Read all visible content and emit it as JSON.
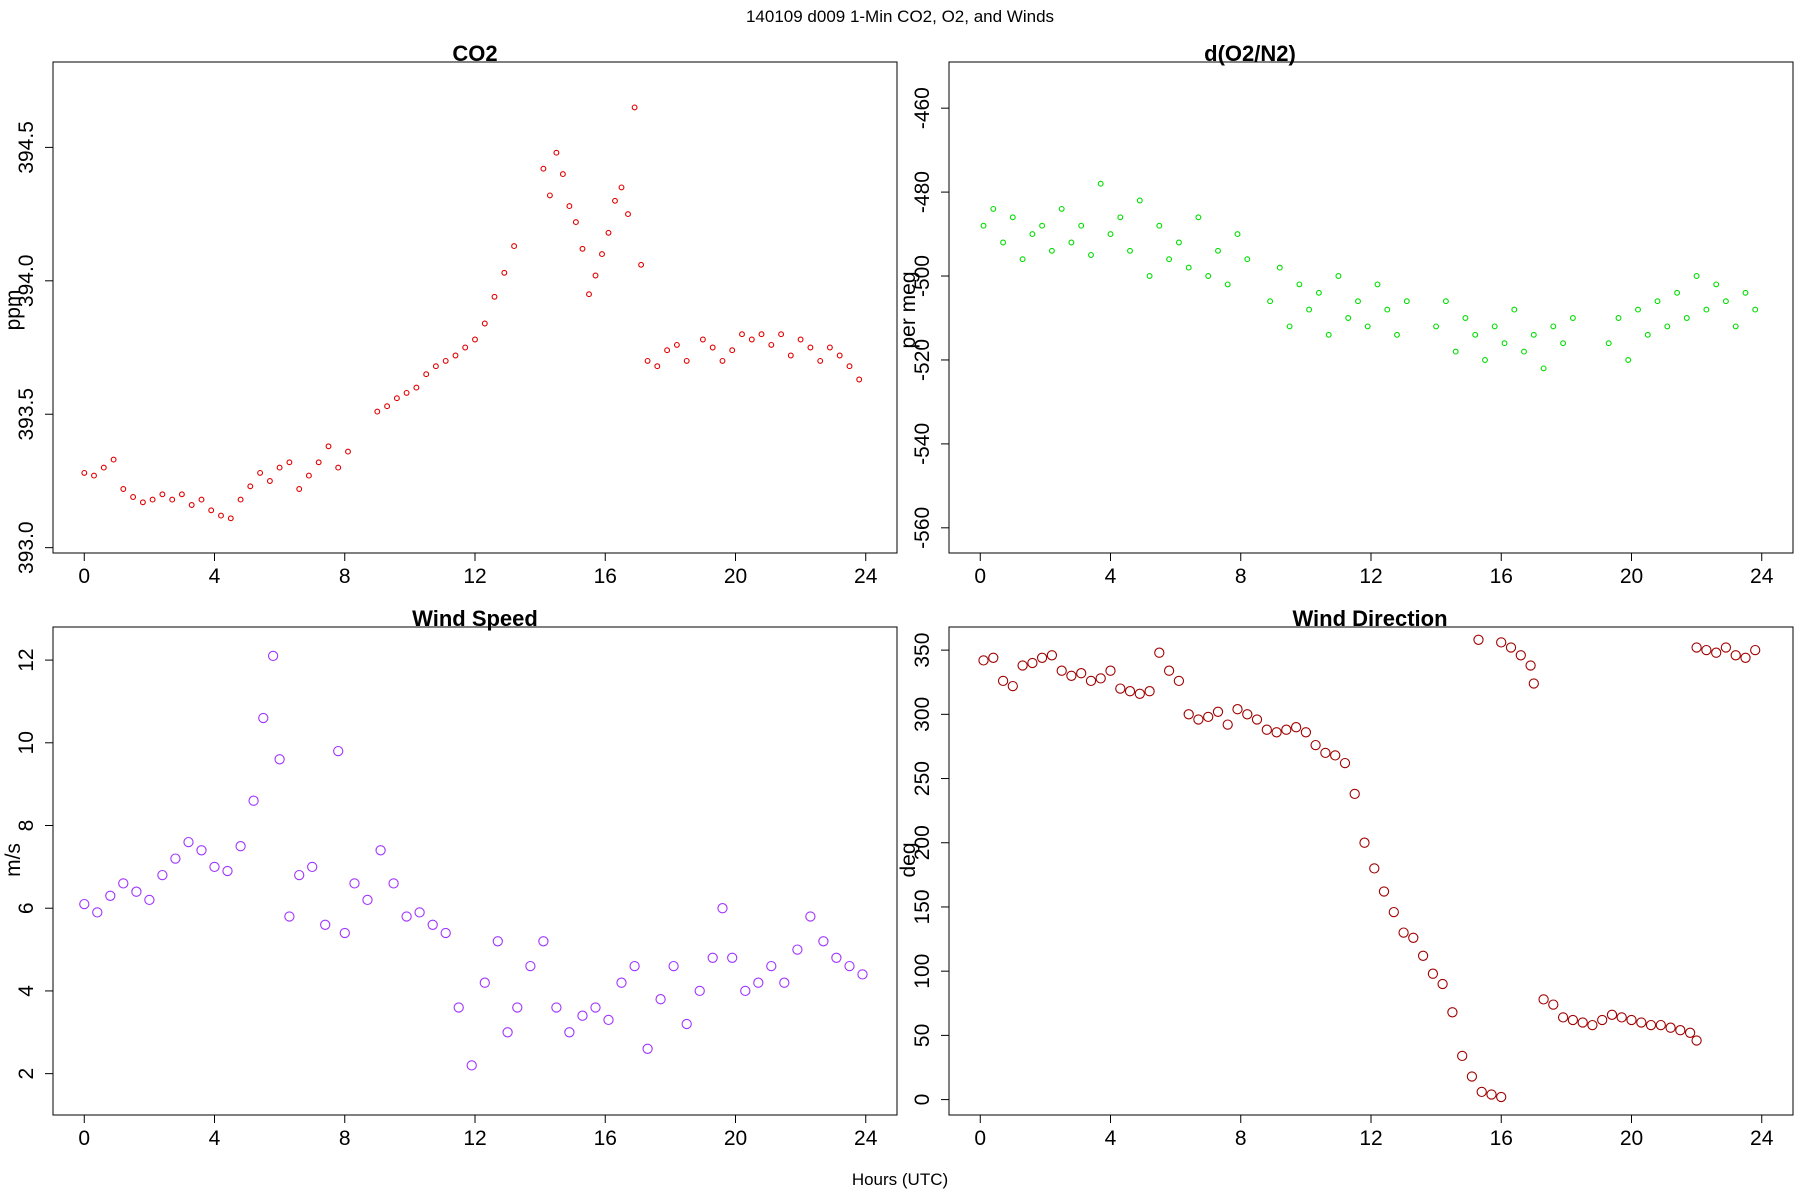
{
  "title": "140109   d009   1-Min CO2, O2, and Winds",
  "xlabel": "Hours (UTC)",
  "chart_data": [
    {
      "type": "scatter",
      "title": "CO2",
      "ylabel": "ppm",
      "color": "#e00000",
      "marker": "small-open-circle",
      "xlim": [
        -0.96,
        24.96
      ],
      "ylim": [
        392.98,
        394.82
      ],
      "xticks": [
        0,
        4,
        8,
        12,
        16,
        20,
        24
      ],
      "yticks": [
        393.0,
        393.5,
        394.0,
        394.5
      ],
      "ytick_labels": [
        "393.0",
        "393.5",
        "394.0",
        "394.5"
      ],
      "segments": [
        {
          "x": [
            0.0,
            0.3,
            0.6,
            0.9,
            1.2,
            1.5,
            1.8,
            2.1,
            2.4,
            2.7,
            3.0,
            3.3,
            3.6,
            3.9,
            4.2,
            4.5,
            4.8,
            5.1,
            5.4,
            5.7,
            6.0,
            6.3,
            6.6,
            6.9,
            7.2,
            7.5,
            7.8,
            8.1
          ],
          "y": [
            393.28,
            393.27,
            393.3,
            393.33,
            393.22,
            393.19,
            393.17,
            393.18,
            393.2,
            393.18,
            393.2,
            393.16,
            393.18,
            393.14,
            393.12,
            393.11,
            393.18,
            393.23,
            393.28,
            393.25,
            393.3,
            393.32,
            393.22,
            393.27,
            393.32,
            393.38,
            393.3,
            393.36
          ]
        },
        {
          "x": [
            9.0,
            9.3,
            9.6,
            9.9,
            10.2,
            10.5,
            10.8,
            11.1,
            11.4,
            11.7,
            12.0,
            12.3,
            12.6,
            12.9,
            13.2
          ],
          "y": [
            393.51,
            393.53,
            393.56,
            393.58,
            393.6,
            393.65,
            393.68,
            393.7,
            393.72,
            393.75,
            393.78,
            393.84,
            393.94,
            394.03,
            394.13
          ]
        },
        {
          "x": [
            14.1,
            14.3,
            14.5,
            14.7,
            14.9,
            15.1,
            15.3,
            15.5,
            15.7,
            15.9,
            16.1,
            16.3,
            16.5,
            16.7,
            16.9,
            17.1
          ],
          "y": [
            394.42,
            394.32,
            394.48,
            394.4,
            394.28,
            394.22,
            394.12,
            393.95,
            394.02,
            394.1,
            394.18,
            394.3,
            394.35,
            394.25,
            394.65,
            394.06
          ]
        },
        {
          "x": [
            17.3,
            17.6,
            17.9,
            18.2,
            18.5
          ],
          "y": [
            393.7,
            393.68,
            393.74,
            393.76,
            393.7
          ]
        },
        {
          "x": [
            19.0,
            19.3,
            19.6,
            19.9,
            20.2,
            20.5,
            20.8,
            21.1,
            21.4,
            21.7,
            22.0,
            22.3,
            22.6,
            22.9,
            23.2,
            23.5,
            23.8
          ],
          "y": [
            393.78,
            393.75,
            393.7,
            393.74,
            393.8,
            393.78,
            393.8,
            393.76,
            393.8,
            393.72,
            393.78,
            393.75,
            393.7,
            393.75,
            393.72,
            393.68,
            393.63
          ]
        }
      ]
    },
    {
      "type": "scatter",
      "title": "d(O2/N2)",
      "ylabel": "per meg",
      "color": "#00dd00",
      "marker": "small-open-circle",
      "xlim": [
        -0.96,
        24.96
      ],
      "ylim": [
        -566,
        -449
      ],
      "xticks": [
        0,
        4,
        8,
        12,
        16,
        20,
        24
      ],
      "yticks": [
        -460,
        -480,
        -500,
        -520,
        -540,
        -560
      ],
      "ytick_labels": [
        "-460",
        "-480",
        "-500",
        "-520",
        "-540",
        "-560"
      ],
      "segments": [
        {
          "x": [
            0.1,
            0.4,
            0.7,
            1.0,
            1.3,
            1.6,
            1.9,
            2.2,
            2.5,
            2.8,
            3.1,
            3.4,
            3.7,
            4.0,
            4.3,
            4.6,
            4.9,
            5.2,
            5.5,
            5.8,
            6.1,
            6.4,
            6.7,
            7.0,
            7.3,
            7.6,
            7.9,
            8.2
          ],
          "y": [
            -488,
            -484,
            -492,
            -486,
            -496,
            -490,
            -488,
            -494,
            -484,
            -492,
            -488,
            -495,
            -478,
            -490,
            -486,
            -494,
            -482,
            -500,
            -488,
            -496,
            -492,
            -498,
            -486,
            -500,
            -494,
            -502,
            -490,
            -496
          ]
        },
        {
          "x": [
            8.9,
            9.2,
            9.5,
            9.8,
            10.1,
            10.4,
            10.7,
            11.0,
            11.3,
            11.6,
            11.9,
            12.2,
            12.5,
            12.8,
            13.1
          ],
          "y": [
            -506,
            -498,
            -512,
            -502,
            -508,
            -504,
            -514,
            -500,
            -510,
            -506,
            -512,
            -502,
            -508,
            -514,
            -506
          ]
        },
        {
          "x": [
            14.0,
            14.3,
            14.6,
            14.9,
            15.2,
            15.5,
            15.8,
            16.1,
            16.4,
            16.7,
            17.0,
            17.3,
            17.6,
            17.9,
            18.2
          ],
          "y": [
            -512,
            -506,
            -518,
            -510,
            -514,
            -520,
            -512,
            -516,
            -508,
            -518,
            -514,
            -522,
            -512,
            -516,
            -510
          ]
        },
        {
          "x": [
            19.3,
            19.6,
            19.9,
            20.2,
            20.5,
            20.8,
            21.1,
            21.4,
            21.7,
            22.0,
            22.3,
            22.6,
            22.9,
            23.2,
            23.5,
            23.8
          ],
          "y": [
            -516,
            -510,
            -520,
            -508,
            -514,
            -506,
            -512,
            -504,
            -510,
            -500,
            -508,
            -502,
            -506,
            -512,
            -504,
            -508
          ]
        }
      ]
    },
    {
      "type": "scatter",
      "title": "Wind Speed",
      "ylabel": "m/s",
      "color": "#a033ff",
      "marker": "open-circle",
      "xlim": [
        -0.96,
        24.96
      ],
      "ylim": [
        1.0,
        12.8
      ],
      "xticks": [
        0,
        4,
        8,
        12,
        16,
        20,
        24
      ],
      "yticks": [
        2,
        4,
        6,
        8,
        10,
        12
      ],
      "ytick_labels": [
        "2",
        "4",
        "6",
        "8",
        "10",
        "12"
      ],
      "segments": [
        {
          "x": [
            0.0,
            0.4,
            0.8,
            1.2,
            1.6,
            2.0,
            2.4,
            2.8,
            3.2,
            3.6,
            4.0,
            4.4,
            4.8,
            5.2,
            5.5,
            5.8,
            6.0,
            6.3,
            6.6,
            7.0,
            7.4,
            7.8,
            8.0,
            8.3,
            8.7,
            9.1,
            9.5,
            9.9,
            10.3,
            10.7,
            11.1,
            11.5,
            11.9,
            12.3,
            12.7,
            13.0,
            13.3,
            13.7,
            14.1,
            14.5,
            14.9,
            15.3,
            15.7,
            16.1,
            16.5,
            16.9,
            17.3,
            17.7,
            18.1,
            18.5,
            18.9,
            19.3,
            19.6,
            19.9,
            20.3,
            20.7,
            21.1,
            21.5,
            21.9,
            22.3,
            22.7,
            23.1,
            23.5,
            23.9
          ],
          "y": [
            6.1,
            5.9,
            6.3,
            6.6,
            6.4,
            6.2,
            6.8,
            7.2,
            7.6,
            7.4,
            7.0,
            6.9,
            7.5,
            8.6,
            10.6,
            12.1,
            9.6,
            5.8,
            6.8,
            7.0,
            5.6,
            9.8,
            5.4,
            6.6,
            6.2,
            7.4,
            6.6,
            5.8,
            5.9,
            5.6,
            5.4,
            3.6,
            2.2,
            4.2,
            5.2,
            3.0,
            3.6,
            4.6,
            5.2,
            3.6,
            3.0,
            3.4,
            3.6,
            3.3,
            4.2,
            4.6,
            2.6,
            3.8,
            4.6,
            3.2,
            4.0,
            4.8,
            6.0,
            4.8,
            4.0,
            4.2,
            4.6,
            4.2,
            5.0,
            5.8,
            5.2,
            4.8,
            4.6,
            4.4
          ]
        }
      ]
    },
    {
      "type": "scatter",
      "title": "Wind Direction",
      "ylabel": "deg",
      "color": "#a00000",
      "marker": "open-circle",
      "xlim": [
        -0.96,
        24.96
      ],
      "ylim": [
        -12,
        368
      ],
      "xticks": [
        0,
        4,
        8,
        12,
        16,
        20,
        24
      ],
      "yticks": [
        0,
        50,
        100,
        150,
        200,
        250,
        300,
        350
      ],
      "ytick_labels": [
        "0",
        "50",
        "100",
        "150",
        "200",
        "250",
        "300",
        "350"
      ],
      "segments": [
        {
          "x": [
            0.1,
            0.4,
            0.7,
            1.0,
            1.3,
            1.6,
            1.9,
            2.2,
            2.5,
            2.8,
            3.1,
            3.4,
            3.7,
            4.0,
            4.3,
            4.6,
            4.9,
            5.2,
            5.5,
            5.8,
            6.1,
            6.4,
            6.7,
            7.0,
            7.3,
            7.6,
            7.9,
            8.2,
            8.5,
            8.8,
            9.1,
            9.4,
            9.7,
            10.0,
            10.3,
            10.6,
            10.9,
            11.2,
            11.5,
            11.8,
            12.1,
            12.4,
            12.7,
            13.0,
            13.3,
            13.6,
            13.9,
            14.2,
            14.5,
            14.8,
            15.1,
            15.4,
            15.7,
            16.0
          ],
          "y": [
            342,
            344,
            326,
            322,
            338,
            340,
            344,
            346,
            334,
            330,
            332,
            326,
            328,
            334,
            320,
            318,
            316,
            318,
            348,
            334,
            326,
            300,
            296,
            298,
            302,
            292,
            304,
            300,
            296,
            288,
            286,
            288,
            290,
            286,
            276,
            270,
            268,
            262,
            238,
            200,
            180,
            162,
            146,
            130,
            126,
            112,
            98,
            90,
            68,
            34,
            18,
            6,
            4,
            2
          ]
        },
        {
          "x": [
            15.3,
            16.0,
            16.3,
            16.6,
            16.9,
            17.0
          ],
          "y": [
            358,
            356,
            352,
            346,
            338,
            324
          ]
        },
        {
          "x": [
            17.3,
            17.6,
            17.9,
            18.2,
            18.5,
            18.8,
            19.1,
            19.4,
            19.7,
            20.0,
            20.3,
            20.6,
            20.9,
            21.2,
            21.5,
            21.8,
            22.0
          ],
          "y": [
            78,
            74,
            64,
            62,
            60,
            58,
            62,
            66,
            64,
            62,
            60,
            58,
            58,
            56,
            54,
            52,
            46
          ]
        },
        {
          "x": [
            22.0,
            22.3,
            22.6,
            22.9,
            23.2,
            23.5,
            23.8
          ],
          "y": [
            352,
            350,
            348,
            352,
            346,
            344,
            350
          ]
        }
      ]
    }
  ]
}
